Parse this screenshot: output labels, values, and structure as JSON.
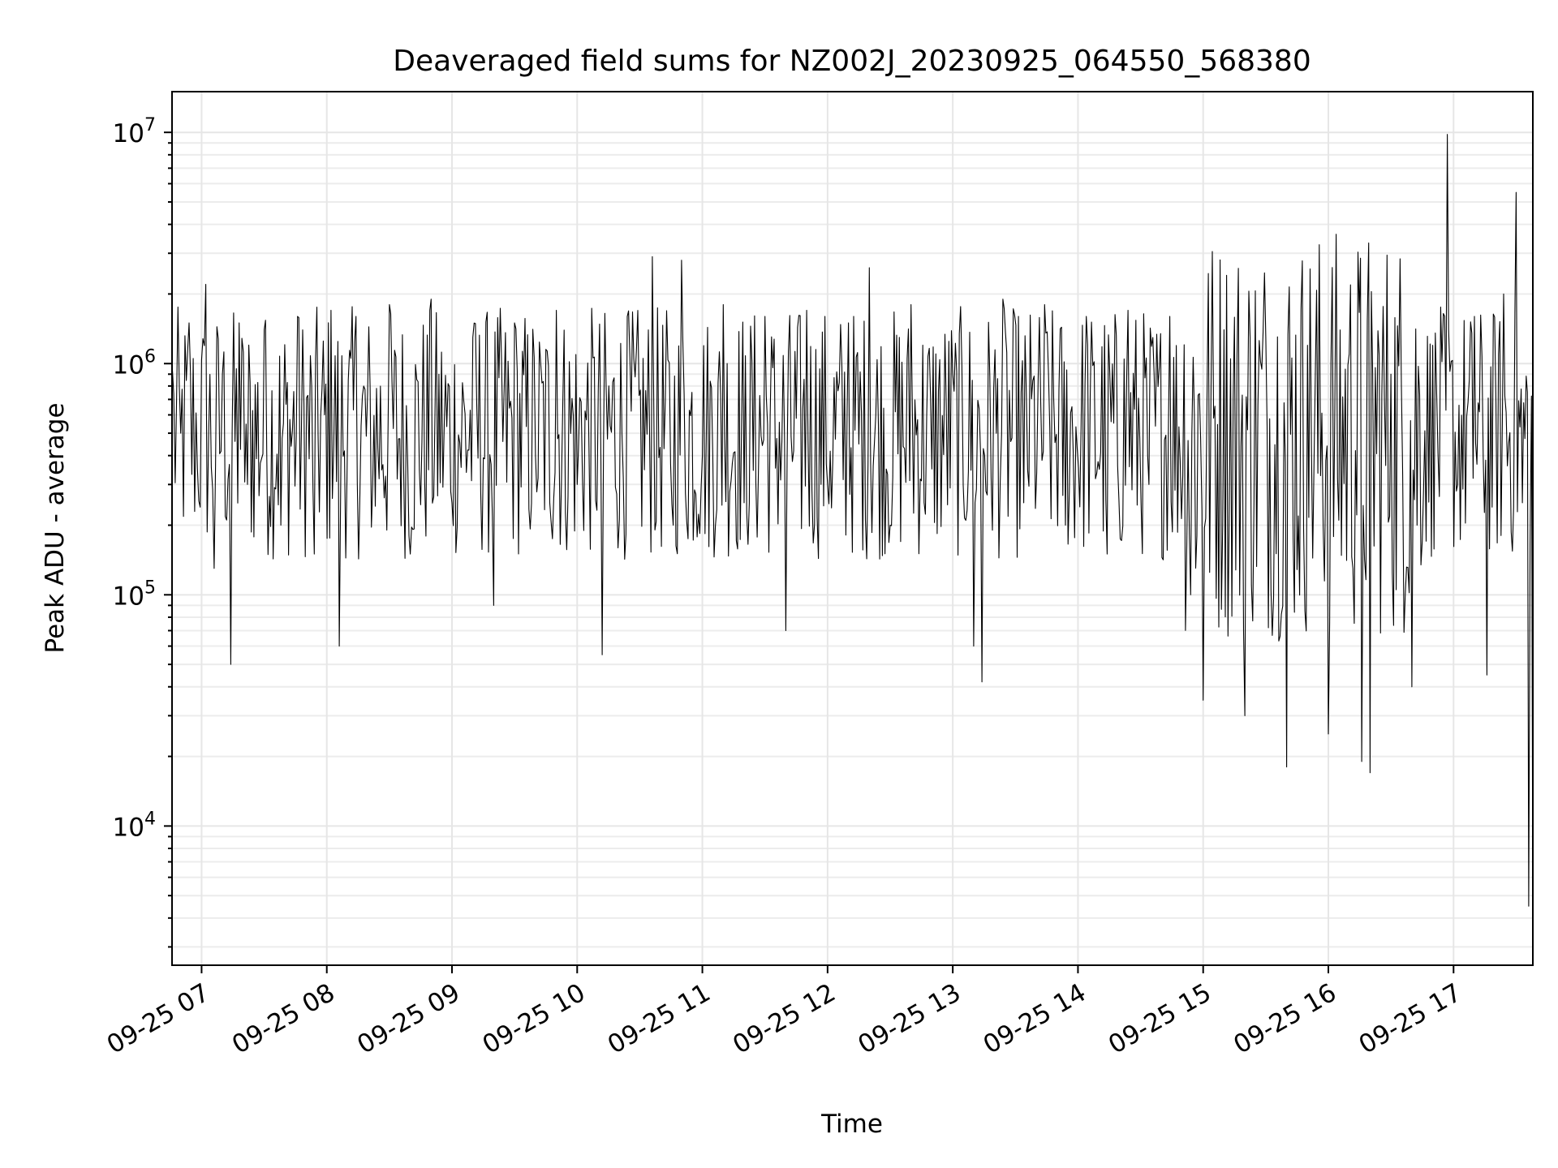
{
  "chart_data": {
    "type": "line",
    "title": "Deaveraged field sums for NZ002J_20230925_064550_568380",
    "xlabel": "Time",
    "ylabel": "Peak ADU - average",
    "yscale": "log",
    "grid": true,
    "xlim": [
      "2023-09-25 06:45:50",
      "2023-09-25 17:38:00"
    ],
    "ylim": [
      2500,
      15000000
    ],
    "x_ticks": [
      {
        "value": "2023-09-25 07:00",
        "label": "09-25 07"
      },
      {
        "value": "2023-09-25 08:00",
        "label": "09-25 08"
      },
      {
        "value": "2023-09-25 09:00",
        "label": "09-25 09"
      },
      {
        "value": "2023-09-25 10:00",
        "label": "09-25 10"
      },
      {
        "value": "2023-09-25 11:00",
        "label": "09-25 11"
      },
      {
        "value": "2023-09-25 12:00",
        "label": "09-25 12"
      },
      {
        "value": "2023-09-25 13:00",
        "label": "09-25 13"
      },
      {
        "value": "2023-09-25 14:00",
        "label": "09-25 14"
      },
      {
        "value": "2023-09-25 15:00",
        "label": "09-25 15"
      },
      {
        "value": "2023-09-25 16:00",
        "label": "09-25 16"
      },
      {
        "value": "2023-09-25 17:00",
        "label": "09-25 17"
      }
    ],
    "y_ticks": [
      {
        "value": 10000,
        "base": "10",
        "exp": "4"
      },
      {
        "value": 100000,
        "base": "10",
        "exp": "5"
      },
      {
        "value": 1000000,
        "base": "10",
        "exp": "6"
      },
      {
        "value": 10000000,
        "base": "10",
        "exp": "7"
      }
    ],
    "series": [
      {
        "color": "#000000",
        "points": [
          [
            "2023-09-25 06:46",
            950000
          ],
          [
            "2023-09-25 06:50",
            500000
          ],
          [
            "2023-09-25 06:54",
            1500000
          ],
          [
            "2023-09-25 06:58",
            350000
          ],
          [
            "2023-09-25 07:02",
            2200000
          ],
          [
            "2023-09-25 07:06",
            130000
          ],
          [
            "2023-09-25 07:10",
            900000
          ],
          [
            "2023-09-25 07:14",
            50000
          ],
          [
            "2023-09-25 07:18",
            1500000
          ],
          [
            "2023-09-25 07:22",
            300000
          ],
          [
            "2023-09-25 07:30",
            1400000
          ],
          [
            "2023-09-25 07:38",
            200000
          ],
          [
            "2023-09-25 07:46",
            1600000
          ],
          [
            "2023-09-25 07:54",
            150000
          ],
          [
            "2023-09-25 08:02",
            1700000
          ],
          [
            "2023-09-25 08:06",
            60000
          ],
          [
            "2023-09-25 08:14",
            1600000
          ],
          [
            "2023-09-25 08:22",
            300000
          ],
          [
            "2023-09-25 08:30",
            1800000
          ],
          [
            "2023-09-25 08:40",
            150000
          ],
          [
            "2023-09-25 08:50",
            1900000
          ],
          [
            "2023-09-25 09:00",
            250000
          ],
          [
            "2023-09-25 09:10",
            1300000
          ],
          [
            "2023-09-25 09:20",
            90000
          ],
          [
            "2023-09-25 09:30",
            1500000
          ],
          [
            "2023-09-25 09:40",
            400000
          ],
          [
            "2023-09-25 09:50",
            1700000
          ],
          [
            "2023-09-25 10:00",
            300000
          ],
          [
            "2023-09-25 10:12",
            55000
          ],
          [
            "2023-09-25 10:24",
            1600000
          ],
          [
            "2023-09-25 10:36",
            2900000
          ],
          [
            "2023-09-25 10:46",
            200000
          ],
          [
            "2023-09-25 10:50",
            2800000
          ],
          [
            "2023-09-25 11:00",
            400000
          ],
          [
            "2023-09-25 11:10",
            1800000
          ],
          [
            "2023-09-25 11:20",
            250000
          ],
          [
            "2023-09-25 11:30",
            1600000
          ],
          [
            "2023-09-25 11:40",
            70000
          ],
          [
            "2023-09-25 11:50",
            1700000
          ],
          [
            "2023-09-25 12:00",
            300000
          ],
          [
            "2023-09-25 12:10",
            1500000
          ],
          [
            "2023-09-25 12:20",
            2600000
          ],
          [
            "2023-09-25 12:30",
            200000
          ],
          [
            "2023-09-25 12:40",
            1800000
          ],
          [
            "2023-09-25 12:50",
            350000
          ],
          [
            "2023-09-25 13:00",
            900000
          ],
          [
            "2023-09-25 13:10",
            60000
          ],
          [
            "2023-09-25 13:14",
            42000
          ],
          [
            "2023-09-25 13:24",
            1900000
          ],
          [
            "2023-09-25 13:34",
            250000
          ],
          [
            "2023-09-25 13:44",
            1800000
          ],
          [
            "2023-09-25 13:54",
            200000
          ],
          [
            "2023-09-25 14:04",
            1600000
          ],
          [
            "2023-09-25 14:14",
            150000
          ],
          [
            "2023-09-25 14:24",
            1700000
          ],
          [
            "2023-09-25 14:34",
            300000
          ],
          [
            "2023-09-25 14:44",
            1600000
          ],
          [
            "2023-09-25 14:54",
            100000
          ],
          [
            "2023-09-25 15:00",
            35000
          ],
          [
            "2023-09-25 15:10",
            1400000
          ],
          [
            "2023-09-25 15:20",
            30000
          ],
          [
            "2023-09-25 15:30",
            1300000
          ],
          [
            "2023-09-25 15:40",
            18000
          ],
          [
            "2023-09-25 15:50",
            1200000
          ],
          [
            "2023-09-25 16:00",
            25000
          ],
          [
            "2023-09-25 16:10",
            1100000
          ],
          [
            "2023-09-25 16:16",
            19000
          ],
          [
            "2023-09-25 16:20",
            17000
          ],
          [
            "2023-09-25 16:30",
            900000
          ],
          [
            "2023-09-25 16:40",
            40000
          ],
          [
            "2023-09-25 16:50",
            1200000
          ],
          [
            "2023-09-25 16:57",
            9800000
          ],
          [
            "2023-09-25 17:02",
            300000
          ],
          [
            "2023-09-25 17:10",
            1600000
          ],
          [
            "2023-09-25 17:16",
            45000
          ],
          [
            "2023-09-25 17:24",
            2000000
          ],
          [
            "2023-09-25 17:30",
            5500000
          ],
          [
            "2023-09-25 17:33",
            250000
          ],
          [
            "2023-09-25 17:36",
            4500
          ],
          [
            "2023-09-25 17:38",
            3500
          ]
        ]
      }
    ]
  }
}
